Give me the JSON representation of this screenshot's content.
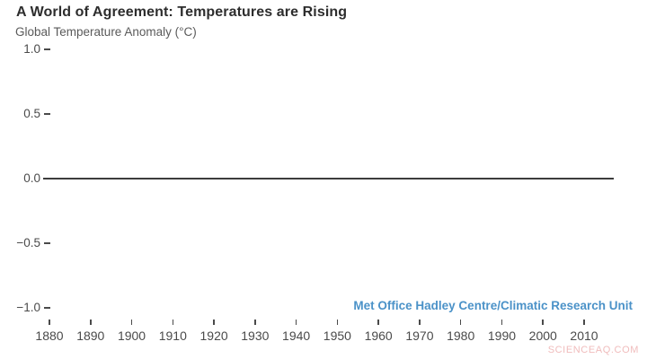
{
  "page": {
    "title": "A World of Agreement: Temperatures are Rising",
    "subtitle": "Global Temperature Anomaly (°C)",
    "source_credit": "Met Office Hadley Centre/Climatic Research Unit",
    "watermark": "SCIENCEAQ.COM"
  },
  "colors": {
    "background": "#ffffff",
    "title_text": "#2d2d2d",
    "subtitle_text": "#5a5a5a",
    "axis_text": "#4a4a4a",
    "axis_line": "#3c3c3c",
    "credit_text": "#4b92c8",
    "watermark_text": "#f0bcbc"
  },
  "chart_data": {
    "type": "line",
    "title": "A World of Agreement: Temperatures are Rising",
    "ylabel": "Global Temperature Anomaly (°C)",
    "xlabel": "",
    "xlim": [
      1878,
      2017
    ],
    "ylim": [
      -1.0,
      1.0
    ],
    "x_ticks": [
      1880,
      1890,
      1900,
      1910,
      1920,
      1930,
      1940,
      1950,
      1960,
      1970,
      1980,
      1990,
      2000,
      2010
    ],
    "y_ticks": [
      1.0,
      0.5,
      0.0,
      -0.5,
      -1.0
    ],
    "y_tick_labels": [
      "1.0",
      "0.5",
      "0.0",
      "−0.5",
      "−1.0"
    ],
    "series": [],
    "grid": false,
    "zero_baseline": true,
    "legend_position": "none",
    "annotations": [
      "Met Office Hadley Centre/Climatic Research Unit"
    ]
  }
}
